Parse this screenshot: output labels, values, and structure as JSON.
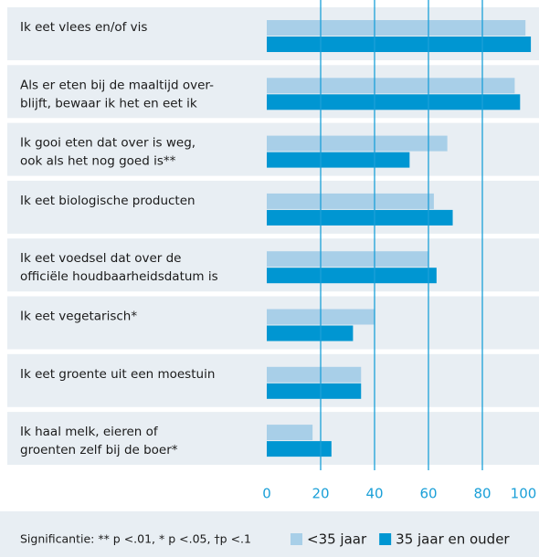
{
  "chart_data": {
    "type": "hbar",
    "categories": [
      [
        "Ik eet vlees en/of vis"
      ],
      [
        "Als er eten bij de maaltijd over-",
        "blijft, bewaar ik het en eet ik"
      ],
      [
        "Ik gooi eten dat over is weg,",
        "ook als het nog goed is**"
      ],
      [
        "Ik eet biologische producten"
      ],
      [
        "Ik eet voedsel dat over de",
        "officiële houdbaarheidsdatum is"
      ],
      [
        "Ik eet vegetarisch*"
      ],
      [
        "Ik eet groente uit een moestuin"
      ],
      [
        "Ik haal melk, eieren of",
        "groenten zelf bij de boer*"
      ]
    ],
    "series": [
      {
        "name": "<35 jaar",
        "color": "#a8cfe8",
        "values": [
          96,
          92,
          67,
          62,
          60,
          40,
          35,
          17
        ]
      },
      {
        "name": "35 jaar en ouder",
        "color": "#0096d2",
        "values": [
          98,
          94,
          53,
          69,
          63,
          32,
          35,
          24
        ]
      }
    ],
    "xlim": [
      0,
      100
    ],
    "xticks": [
      0,
      20,
      40,
      60,
      80,
      100
    ],
    "grid": true,
    "footnote": "Significantie: ** p <.01, * p <.05, †p <.1"
  }
}
